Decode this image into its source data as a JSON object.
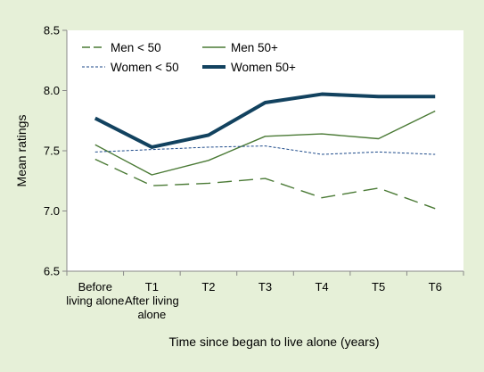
{
  "chart_data": {
    "type": "line",
    "categories": [
      [
        "Before",
        "living alone"
      ],
      [
        "T1",
        "After living",
        "alone"
      ],
      [
        "T2"
      ],
      [
        "T3"
      ],
      [
        "T4"
      ],
      [
        "T5"
      ],
      [
        "T6"
      ]
    ],
    "series": [
      {
        "name": "Men < 50",
        "values": [
          7.43,
          7.21,
          7.23,
          7.27,
          7.11,
          7.19,
          7.02
        ],
        "color": "#4a7a35",
        "style": "long-dash"
      },
      {
        "name": "Men 50+",
        "values": [
          7.55,
          7.3,
          7.42,
          7.62,
          7.64,
          7.6,
          7.83
        ],
        "color": "#4a7a35",
        "style": "solid-thin"
      },
      {
        "name": "Women < 50",
        "values": [
          7.49,
          7.51,
          7.53,
          7.54,
          7.47,
          7.49,
          7.47
        ],
        "color": "#1d4a8a",
        "style": "short-dash"
      },
      {
        "name": "Women 50+",
        "values": [
          7.77,
          7.53,
          7.63,
          7.9,
          7.97,
          7.95,
          7.95
        ],
        "color": "#12425f",
        "style": "solid-thick"
      }
    ],
    "ylim": [
      6.5,
      8.5
    ],
    "yticks": [
      "6.5",
      "7.0",
      "7.5",
      "8.0",
      "8.5"
    ],
    "ylabel": "Mean ratings",
    "xlabel": "Time since began to live alone (years)",
    "grid": false,
    "legend": "top, inside plot area, two columns"
  },
  "colors": {
    "background": "#e6f0d8",
    "plot_area": "#ffffff",
    "axis": "#888888"
  }
}
